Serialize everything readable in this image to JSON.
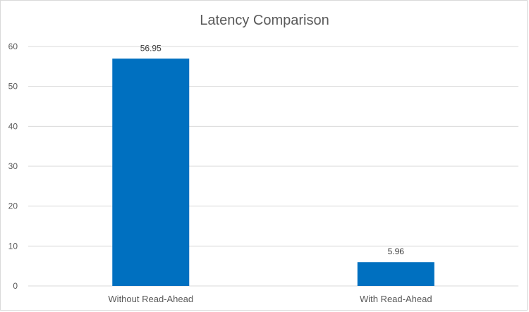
{
  "chart_data": {
    "type": "bar",
    "title": "Latency Comparison",
    "xlabel": "",
    "ylabel": "",
    "categories": [
      "Without Read-Ahead",
      "With Read-Ahead"
    ],
    "values": [
      56.95,
      5.96
    ],
    "value_labels": [
      "56.95",
      "5.96"
    ],
    "ylim": [
      0,
      60
    ],
    "yticks": [
      0,
      10,
      20,
      30,
      40,
      50,
      60
    ],
    "ytick_labels": [
      "0",
      "10",
      "20",
      "30",
      "40",
      "50",
      "60"
    ],
    "grid": true,
    "legend": "none",
    "bar_color": "#0070C0",
    "grid_color": "#d9d9d9"
  }
}
